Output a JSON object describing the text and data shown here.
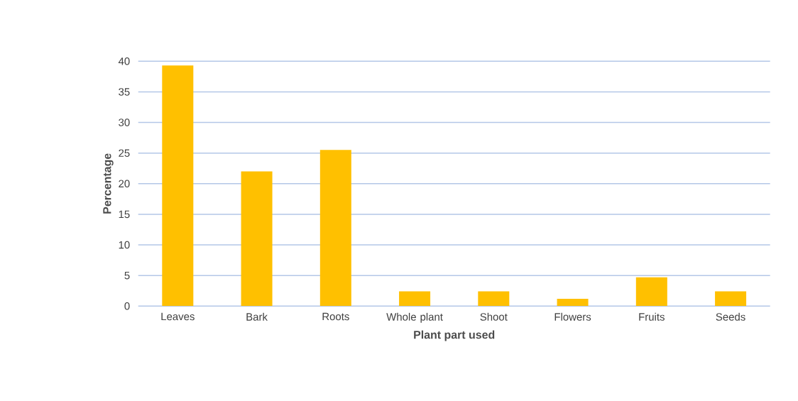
{
  "chart_data": {
    "type": "bar",
    "xlabel": "Plant part used",
    "ylabel": "Percentage",
    "categories": [
      "Leaves",
      "Bark",
      "Roots",
      "Whole plant",
      "Shoot",
      "Flowers",
      "Fruits",
      "Seeds"
    ],
    "values": [
      39.3,
      22.0,
      25.5,
      2.4,
      2.4,
      1.2,
      4.7,
      2.4
    ],
    "color": "#ffc000",
    "ylim": [
      0,
      40
    ],
    "yticks": [
      0,
      5,
      10,
      15,
      20,
      25,
      30,
      35,
      40
    ],
    "grid": "y"
  }
}
